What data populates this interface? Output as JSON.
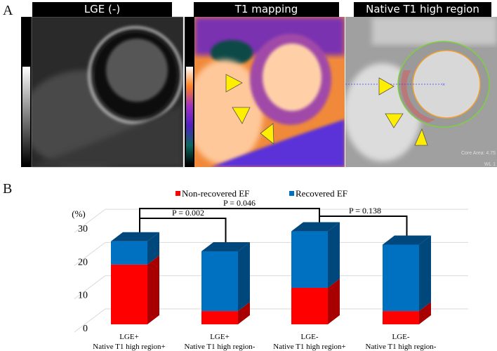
{
  "panel_a": {
    "letter": "A",
    "panels": [
      {
        "title": "LGE (-)"
      },
      {
        "title": "T1 mapping"
      },
      {
        "title": "Native T1 high region",
        "overlay_lines": [
          "Core Area: 4.75",
          "WL 1"
        ]
      }
    ],
    "arrow_color": "#ffee00",
    "contour_colors": {
      "epicardial": "#7fd13b",
      "endocardial": "#f0a030"
    }
  },
  "panel_b": {
    "letter": "B"
  },
  "chart_data": {
    "type": "bar",
    "stacked": true,
    "three_d": true,
    "ylabel": "(%)",
    "ylim": [
      0,
      30
    ],
    "yticks": [
      "0",
      "10",
      "20",
      "30"
    ],
    "grid": true,
    "legend_position": "top",
    "categories": [
      [
        "LGE+",
        "Native  T1 high  region+"
      ],
      [
        "LGE+",
        "Native  T1 high  region-"
      ],
      [
        "LGE-",
        "Native  T1 high  region+"
      ],
      [
        "LGE-",
        "Native  T1 high  region-"
      ]
    ],
    "series": [
      {
        "name": "Non-recovered EF",
        "color": "#ff0000",
        "side_color": "#a80000",
        "values": [
          18,
          4,
          11,
          4
        ]
      },
      {
        "name": "Recovered EF",
        "color": "#0070c0",
        "side_color": "#00477c",
        "values": [
          7,
          18,
          17,
          20
        ]
      }
    ],
    "annotations": [
      {
        "text": "P = 0.046",
        "from": 0,
        "to": 2
      },
      {
        "text": "P = 0.002",
        "from": 0,
        "to": 1
      },
      {
        "text": "P = 0.138",
        "from": 2,
        "to": 3
      }
    ]
  }
}
